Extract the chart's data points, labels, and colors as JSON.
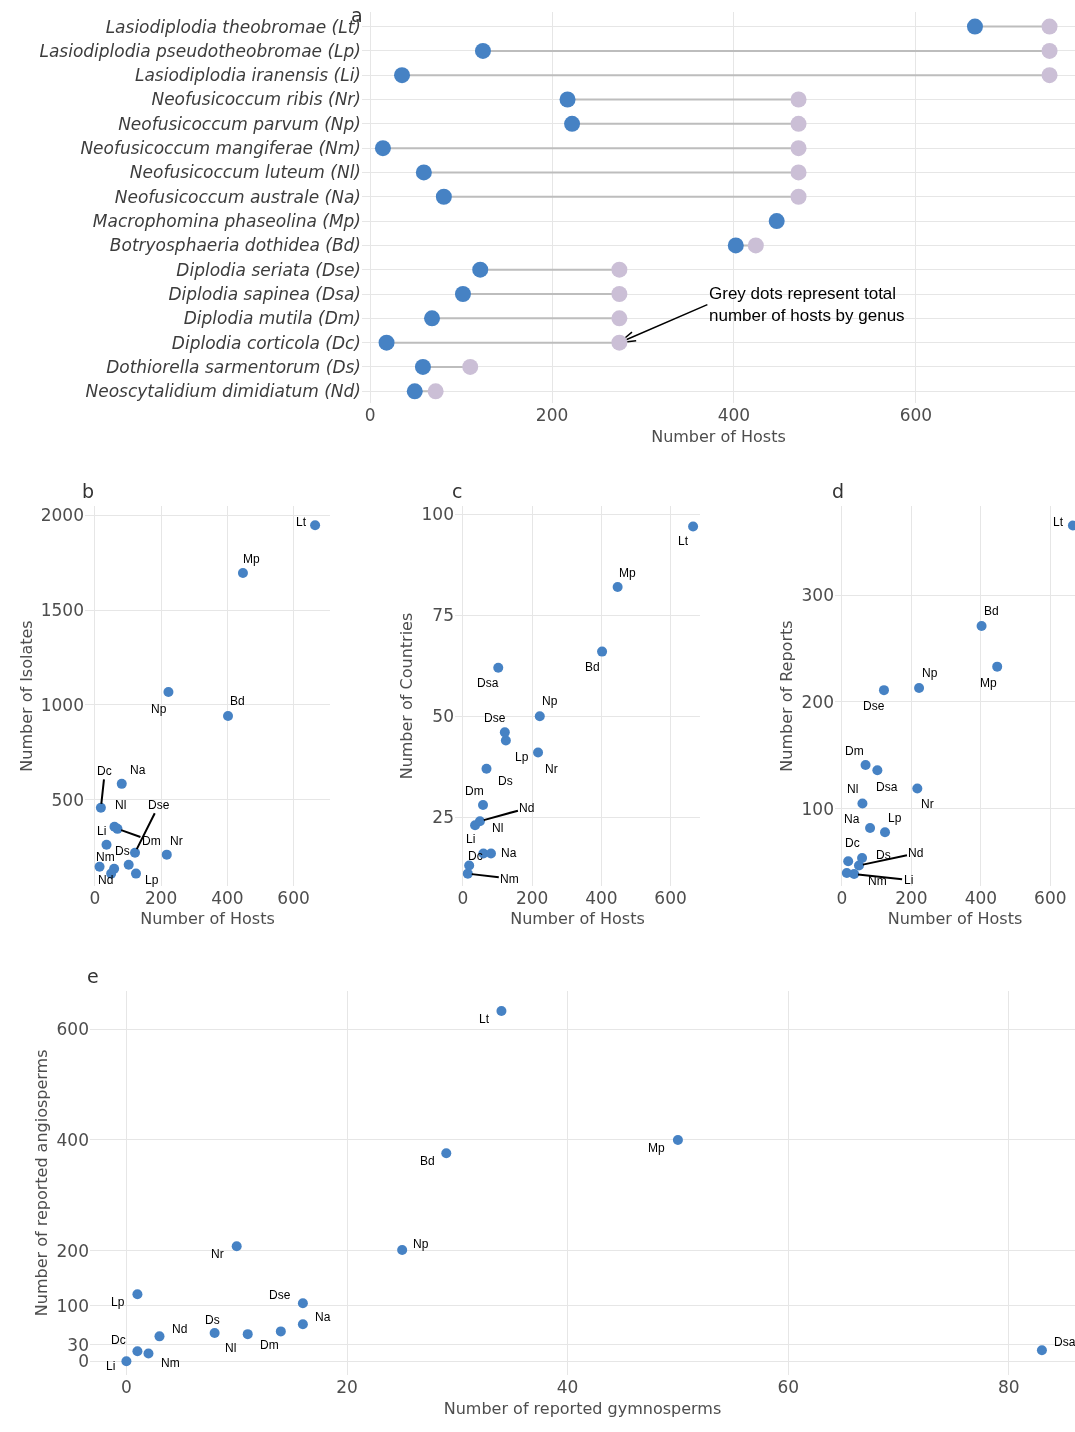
{
  "chart_data": [
    {
      "type": "scatter",
      "title": "a",
      "orientation": "horizontal",
      "marker": "circle",
      "grid": true,
      "xlabel": "Number of Hosts",
      "categories": [
        "Lasiodiplodia theobromae (Lt)",
        "Lasiodiplodia pseudotheobromae (Lp)",
        "Lasiodiplodia iranensis (Li)",
        "Neofusicoccum ribis (Nr)",
        "Neofusicoccum parvum (Np)",
        "Neofusicoccum mangiferae (Nm)",
        "Neofusicoccum luteum (Nl)",
        "Neofusicoccum australe (Na)",
        "Macrophomina phaseolina (Mp)",
        "Botryosphaeria dothidea (Bd)",
        "Diplodia seriata (Dse)",
        "Diplodia sapinea (Dsa)",
        "Diplodia mutila (Dm)",
        "Diplodia corticola (Dc)",
        "Dothiorella sarmentorum (Ds)",
        "Neoscytalidium dimidiatum (Nd)"
      ],
      "series": [
        {
          "color": "#cbbfd6",
          "values": [
            747,
            747,
            747,
            471,
            471,
            471,
            471,
            471,
            null,
            424,
            274,
            274,
            274,
            274,
            110,
            72
          ]
        },
        {
          "color": "#4682c4",
          "values": [
            665,
            124,
            35,
            217,
            222,
            14,
            59,
            81,
            447,
            402,
            121,
            102,
            68,
            18,
            58,
            49
          ]
        }
      ],
      "xlim": [
        -9,
        775
      ],
      "xticks": [
        0,
        200,
        400,
        600
      ],
      "annotations": [
        {
          "text": "Grey dots represent total\nnumber of hosts by genus",
          "x": 274,
          "y": "Diplodia corticola (Dc)"
        }
      ]
    },
    {
      "type": "scatter",
      "title": "b",
      "marker": "circle",
      "grid": true,
      "color": "#4682c4",
      "xlabel": "Number of Hosts",
      "ylabel": "Number of Isolates",
      "x": [
        665,
        124,
        35,
        217,
        222,
        14,
        59,
        81,
        447,
        402,
        121,
        102,
        68,
        18,
        58,
        49
      ],
      "values": [
        1947,
        111,
        263,
        211,
        1068,
        147,
        358,
        584,
        1695,
        942,
        221,
        158,
        347,
        458,
        137,
        111
      ],
      "xlim": [
        -30,
        710
      ],
      "xticks": [
        0,
        200,
        400,
        600
      ],
      "ylim": [
        47,
        2047
      ],
      "yticks": [
        500,
        1000,
        1500,
        2000
      ],
      "annotations": [
        {
          "text": "Lt",
          "x": 665,
          "y": 1947
        },
        {
          "text": "Lp",
          "x": 124,
          "y": 111
        },
        {
          "text": "Li",
          "x": 35,
          "y": 263
        },
        {
          "text": "Nr",
          "x": 217,
          "y": 211
        },
        {
          "text": "Np",
          "x": 222,
          "y": 1068
        },
        {
          "text": "Nm",
          "x": 14,
          "y": 147
        },
        {
          "text": "Nl",
          "x": 59,
          "y": 358
        },
        {
          "text": "Na",
          "x": 81,
          "y": 584
        },
        {
          "text": "Mp",
          "x": 447,
          "y": 1695
        },
        {
          "text": "Bd",
          "x": 402,
          "y": 942
        },
        {
          "text": "Dse",
          "x": 121,
          "y": 221
        },
        {
          "text": "Dm",
          "x": 68,
          "y": 347
        },
        {
          "text": "Dc",
          "x": 18,
          "y": 458
        },
        {
          "text": "Ds",
          "x": 58,
          "y": 137
        },
        {
          "text": "Nd",
          "x": 49,
          "y": 111
        }
      ]
    },
    {
      "type": "scatter",
      "title": "c",
      "marker": "circle",
      "grid": true,
      "color": "#4682c4",
      "xlabel": "Number of Hosts",
      "ylabel": "Number of Countries",
      "x": [
        665,
        124,
        35,
        217,
        222,
        14,
        59,
        81,
        447,
        402,
        121,
        102,
        68,
        18,
        58,
        49
      ],
      "values": [
        97,
        44,
        23,
        41,
        50,
        11,
        16,
        16,
        82,
        66,
        46,
        62,
        37,
        13,
        28,
        24
      ],
      "xlim": [
        -23,
        685
      ],
      "xticks": [
        0,
        200,
        400,
        600
      ],
      "ylim": [
        8,
        102
      ],
      "yticks": [
        25,
        50,
        75,
        100
      ],
      "annotations": [
        {
          "text": "Lt",
          "x": 665,
          "y": 97
        },
        {
          "text": "Lp",
          "x": 124,
          "y": 44
        },
        {
          "text": "Li",
          "x": 35,
          "y": 23
        },
        {
          "text": "Nr",
          "x": 217,
          "y": 41
        },
        {
          "text": "Np",
          "x": 222,
          "y": 50
        },
        {
          "text": "Nm",
          "x": 14,
          "y": 11
        },
        {
          "text": "Nl",
          "x": 59,
          "y": 16
        },
        {
          "text": "Na",
          "x": 81,
          "y": 16
        },
        {
          "text": "Mp",
          "x": 447,
          "y": 82
        },
        {
          "text": "Bd",
          "x": 402,
          "y": 66
        },
        {
          "text": "Dse",
          "x": 121,
          "y": 46
        },
        {
          "text": "Dsa",
          "x": 102,
          "y": 62
        },
        {
          "text": "Dm",
          "x": 68,
          "y": 37
        },
        {
          "text": "Dc",
          "x": 18,
          "y": 13
        },
        {
          "text": "Ds",
          "x": 58,
          "y": 28
        },
        {
          "text": "Nd",
          "x": 49,
          "y": 24
        }
      ]
    },
    {
      "type": "scatter",
      "title": "d",
      "marker": "circle",
      "grid": true,
      "color": "#4682c4",
      "xlabel": "Number of Hosts",
      "ylabel": "Number of Reports",
      "x": [
        665,
        124,
        35,
        217,
        222,
        14,
        59,
        81,
        447,
        402,
        121,
        102,
        68,
        18,
        58,
        49
      ],
      "values": [
        365,
        78,
        39,
        119,
        213,
        40,
        105,
        82,
        233,
        271,
        211,
        136,
        141,
        51,
        54,
        47
      ],
      "xlim": [
        -20,
        671
      ],
      "xticks": [
        0,
        200,
        400,
        600
      ],
      "ylim": [
        28,
        383
      ],
      "yticks": [
        100,
        200,
        300
      ],
      "annotations": [
        {
          "text": "Lt",
          "x": 665,
          "y": 365
        },
        {
          "text": "Lp",
          "x": 124,
          "y": 78
        },
        {
          "text": "Li",
          "x": 35,
          "y": 39
        },
        {
          "text": "Nr",
          "x": 217,
          "y": 119
        },
        {
          "text": "Np",
          "x": 222,
          "y": 213
        },
        {
          "text": "Nm",
          "x": 14,
          "y": 40
        },
        {
          "text": "Nl",
          "x": 59,
          "y": 105
        },
        {
          "text": "Na",
          "x": 81,
          "y": 82
        },
        {
          "text": "Mp",
          "x": 447,
          "y": 233
        },
        {
          "text": "Bd",
          "x": 402,
          "y": 271
        },
        {
          "text": "Dse",
          "x": 121,
          "y": 211
        },
        {
          "text": "Dsa",
          "x": 102,
          "y": 136
        },
        {
          "text": "Dm",
          "x": 68,
          "y": 141
        },
        {
          "text": "Dc",
          "x": 18,
          "y": 51
        },
        {
          "text": "Ds",
          "x": 58,
          "y": 54
        },
        {
          "text": "Nd",
          "x": 49,
          "y": 47
        }
      ]
    },
    {
      "type": "scatter",
      "title": "e",
      "marker": "circle",
      "grid": true,
      "color": "#4682c4",
      "xlabel": "Number of reported gymnosperms",
      "ylabel": "Number of reported angiosperms",
      "x": [
        34,
        1,
        0,
        10,
        25,
        2,
        11,
        16,
        50,
        29,
        16,
        83,
        14,
        1,
        8,
        3
      ],
      "values": [
        633,
        121,
        0,
        208,
        201,
        14,
        49,
        67,
        400,
        376,
        105,
        20,
        54,
        18,
        51,
        45
      ],
      "xlim": [
        -3.3,
        86
      ],
      "xticks": [
        0,
        20,
        40,
        60,
        80
      ],
      "ylim": [
        -25,
        670
      ],
      "yticks": [
        0,
        30,
        100,
        200,
        400,
        600
      ],
      "annotations": [
        {
          "text": "Lt",
          "x": 34,
          "y": 633
        },
        {
          "text": "Lp",
          "x": 1,
          "y": 121
        },
        {
          "text": "Li",
          "x": 0,
          "y": 0
        },
        {
          "text": "Nr",
          "x": 10,
          "y": 208
        },
        {
          "text": "Np",
          "x": 25,
          "y": 201
        },
        {
          "text": "Nm",
          "x": 2,
          "y": 14
        },
        {
          "text": "Nl",
          "x": 11,
          "y": 49
        },
        {
          "text": "Na",
          "x": 16,
          "y": 67
        },
        {
          "text": "Mp",
          "x": 50,
          "y": 400
        },
        {
          "text": "Bd",
          "x": 29,
          "y": 376
        },
        {
          "text": "Dse",
          "x": 16,
          "y": 105
        },
        {
          "text": "Dsa",
          "x": 83,
          "y": 20
        },
        {
          "text": "Dm",
          "x": 14,
          "y": 54
        },
        {
          "text": "Dc",
          "x": 1,
          "y": 18
        },
        {
          "text": "Ds",
          "x": 8,
          "y": 51
        },
        {
          "text": "Nd",
          "x": 3,
          "y": 45
        }
      ]
    }
  ]
}
